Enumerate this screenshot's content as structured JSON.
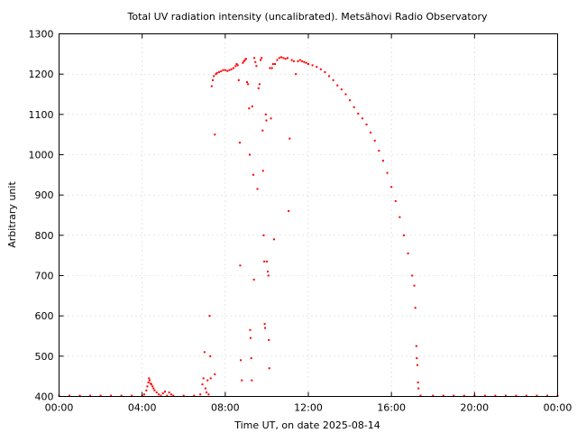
{
  "chart_data": {
    "type": "scatter",
    "title": "Total UV radiation intensity (uncalibrated). Metsähovi Radio Observatory",
    "xlabel": "Time UT, on date 2025-08-14",
    "ylabel": "Arbitrary unit",
    "x_unit": "hours UT",
    "xlim": [
      0,
      24
    ],
    "ylim": [
      400,
      1300
    ],
    "xticks": [
      0,
      4,
      8,
      12,
      16,
      20,
      24
    ],
    "xtick_labels": [
      "00:00",
      "04:00",
      "08:00",
      "12:00",
      "16:00",
      "20:00",
      "00:00"
    ],
    "yticks": [
      400,
      500,
      600,
      700,
      800,
      900,
      1000,
      1100,
      1200,
      1300
    ],
    "ytick_labels": [
      "400",
      "500",
      "600",
      "700",
      "800",
      "900",
      "1000",
      "1100",
      "1200",
      "1300"
    ],
    "grid": true,
    "point_color": "#ff0000",
    "series": [
      {
        "points": [
          [
            0.0,
            402
          ],
          [
            0.5,
            402
          ],
          [
            1.0,
            402
          ],
          [
            1.5,
            402
          ],
          [
            2.0,
            402
          ],
          [
            2.5,
            402
          ],
          [
            3.0,
            402
          ],
          [
            3.5,
            402
          ],
          [
            4.0,
            402
          ],
          [
            4.1,
            405
          ],
          [
            4.2,
            415
          ],
          [
            4.25,
            425
          ],
          [
            4.3,
            435
          ],
          [
            4.33,
            445
          ],
          [
            4.36,
            440
          ],
          [
            4.4,
            432
          ],
          [
            4.45,
            430
          ],
          [
            4.5,
            425
          ],
          [
            4.55,
            420
          ],
          [
            4.6,
            415
          ],
          [
            4.7,
            410
          ],
          [
            4.8,
            405
          ],
          [
            4.9,
            402
          ],
          [
            5.0,
            408
          ],
          [
            5.1,
            412
          ],
          [
            5.2,
            402
          ],
          [
            5.3,
            410
          ],
          [
            5.4,
            405
          ],
          [
            5.5,
            402
          ],
          [
            6.0,
            402
          ],
          [
            6.5,
            402
          ],
          [
            6.8,
            405
          ],
          [
            6.9,
            430
          ],
          [
            6.95,
            445
          ],
          [
            7.0,
            510
          ],
          [
            7.05,
            420
          ],
          [
            7.1,
            410
          ],
          [
            7.15,
            440
          ],
          [
            7.2,
            405
          ],
          [
            7.25,
            600
          ],
          [
            7.28,
            500
          ],
          [
            7.3,
            445
          ],
          [
            7.35,
            1170
          ],
          [
            7.4,
            1185
          ],
          [
            7.45,
            1195
          ],
          [
            7.5,
            1050
          ],
          [
            7.5,
            455
          ],
          [
            7.55,
            1200
          ],
          [
            7.6,
            1203
          ],
          [
            7.7,
            1205
          ],
          [
            7.8,
            1207
          ],
          [
            7.9,
            1210
          ],
          [
            8.0,
            1210
          ],
          [
            8.1,
            1208
          ],
          [
            8.2,
            1210
          ],
          [
            8.3,
            1212
          ],
          [
            8.4,
            1215
          ],
          [
            8.5,
            1220
          ],
          [
            8.55,
            1225
          ],
          [
            8.6,
            1222
          ],
          [
            8.65,
            1185
          ],
          [
            8.7,
            1030
          ],
          [
            8.72,
            725
          ],
          [
            8.75,
            490
          ],
          [
            8.8,
            440
          ],
          [
            8.85,
            1228
          ],
          [
            8.9,
            1232
          ],
          [
            8.95,
            1235
          ],
          [
            9.0,
            1238
          ],
          [
            9.05,
            1180
          ],
          [
            9.1,
            1175
          ],
          [
            9.15,
            1115
          ],
          [
            9.18,
            1000
          ],
          [
            9.2,
            565
          ],
          [
            9.22,
            545
          ],
          [
            9.25,
            495
          ],
          [
            9.28,
            440
          ],
          [
            9.3,
            1120
          ],
          [
            9.35,
            950
          ],
          [
            9.38,
            690
          ],
          [
            9.4,
            1240
          ],
          [
            9.45,
            1230
          ],
          [
            9.5,
            1220
          ],
          [
            9.55,
            915
          ],
          [
            9.6,
            1165
          ],
          [
            9.65,
            1175
          ],
          [
            9.7,
            1235
          ],
          [
            9.75,
            1240
          ],
          [
            9.8,
            1060
          ],
          [
            9.82,
            960
          ],
          [
            9.85,
            800
          ],
          [
            9.88,
            735
          ],
          [
            9.9,
            580
          ],
          [
            9.92,
            570
          ],
          [
            9.95,
            1100
          ],
          [
            9.98,
            1085
          ],
          [
            10.0,
            735
          ],
          [
            10.05,
            710
          ],
          [
            10.08,
            700
          ],
          [
            10.1,
            540
          ],
          [
            10.12,
            470
          ],
          [
            10.15,
            1215
          ],
          [
            10.2,
            1090
          ],
          [
            10.25,
            1215
          ],
          [
            10.3,
            1225
          ],
          [
            10.35,
            790
          ],
          [
            10.4,
            1225
          ],
          [
            10.5,
            1235
          ],
          [
            10.6,
            1240
          ],
          [
            10.7,
            1242
          ],
          [
            10.8,
            1240
          ],
          [
            10.9,
            1238
          ],
          [
            11.0,
            1240
          ],
          [
            11.05,
            860
          ],
          [
            11.1,
            1040
          ],
          [
            11.2,
            1235
          ],
          [
            11.3,
            1232
          ],
          [
            11.4,
            1200
          ],
          [
            11.5,
            1232
          ],
          [
            11.6,
            1235
          ],
          [
            11.7,
            1232
          ],
          [
            11.8,
            1230
          ],
          [
            11.9,
            1228
          ],
          [
            12.0,
            1225
          ],
          [
            12.2,
            1222
          ],
          [
            12.4,
            1218
          ],
          [
            12.6,
            1212
          ],
          [
            12.8,
            1205
          ],
          [
            13.0,
            1195
          ],
          [
            13.2,
            1185
          ],
          [
            13.4,
            1172
          ],
          [
            13.6,
            1162
          ],
          [
            13.8,
            1150
          ],
          [
            14.0,
            1135
          ],
          [
            14.2,
            1118
          ],
          [
            14.4,
            1102
          ],
          [
            14.6,
            1090
          ],
          [
            14.8,
            1075
          ],
          [
            15.0,
            1055
          ],
          [
            15.2,
            1035
          ],
          [
            15.4,
            1010
          ],
          [
            15.6,
            985
          ],
          [
            15.8,
            955
          ],
          [
            16.0,
            920
          ],
          [
            16.2,
            885
          ],
          [
            16.4,
            845
          ],
          [
            16.6,
            800
          ],
          [
            16.8,
            755
          ],
          [
            17.0,
            700
          ],
          [
            17.1,
            675
          ],
          [
            17.15,
            620
          ],
          [
            17.2,
            525
          ],
          [
            17.22,
            495
          ],
          [
            17.25,
            478
          ],
          [
            17.28,
            435
          ],
          [
            17.3,
            420
          ],
          [
            17.4,
            402
          ],
          [
            18.0,
            402
          ],
          [
            18.5,
            402
          ],
          [
            19.0,
            402
          ],
          [
            19.5,
            402
          ],
          [
            20.0,
            402
          ],
          [
            20.5,
            402
          ],
          [
            21.0,
            402
          ],
          [
            21.5,
            402
          ],
          [
            22.0,
            402
          ],
          [
            22.5,
            402
          ],
          [
            23.0,
            402
          ],
          [
            23.5,
            402
          ],
          [
            24.0,
            402
          ]
        ]
      }
    ]
  }
}
